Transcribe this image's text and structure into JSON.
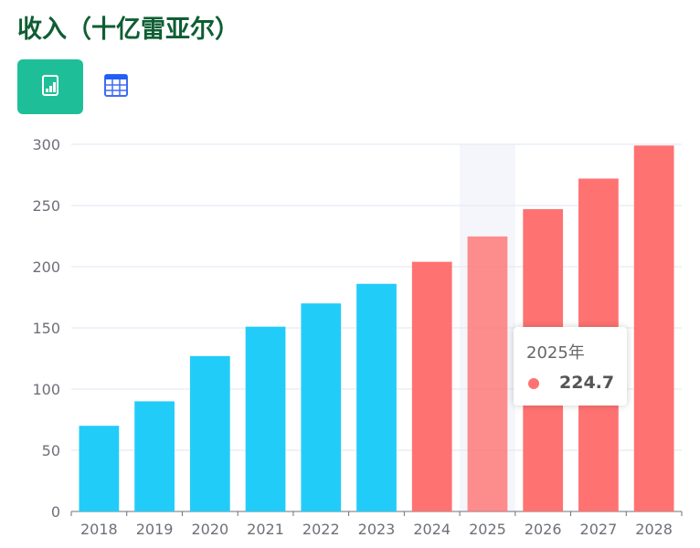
{
  "title": "收入（十亿雷亚尔）",
  "toolbar": {
    "chart_icon": "bar-chart-icon",
    "table_icon": "table-icon",
    "active": "chart"
  },
  "tooltip": {
    "label": "2025年",
    "value": "224.7",
    "color": "#ff7272"
  },
  "chart_data": {
    "type": "bar",
    "categories": [
      "2018",
      "2019",
      "2020",
      "2021",
      "2022",
      "2023",
      "2024",
      "2025",
      "2026",
      "2027",
      "2028"
    ],
    "values": [
      70,
      90,
      127,
      151,
      170,
      186,
      204,
      224.7,
      247,
      272,
      299
    ],
    "colors": [
      "#22ccf8",
      "#22ccf8",
      "#22ccf8",
      "#22ccf8",
      "#22ccf8",
      "#22ccf8",
      "#ff7272",
      "#ff7272",
      "#ff7272",
      "#ff7272",
      "#ff7272"
    ],
    "highlighted": "2025",
    "ylim": [
      0,
      300
    ],
    "yticks": [
      0,
      50,
      100,
      150,
      200,
      250,
      300
    ],
    "grid": true,
    "title": "",
    "xlabel": "",
    "ylabel": ""
  }
}
